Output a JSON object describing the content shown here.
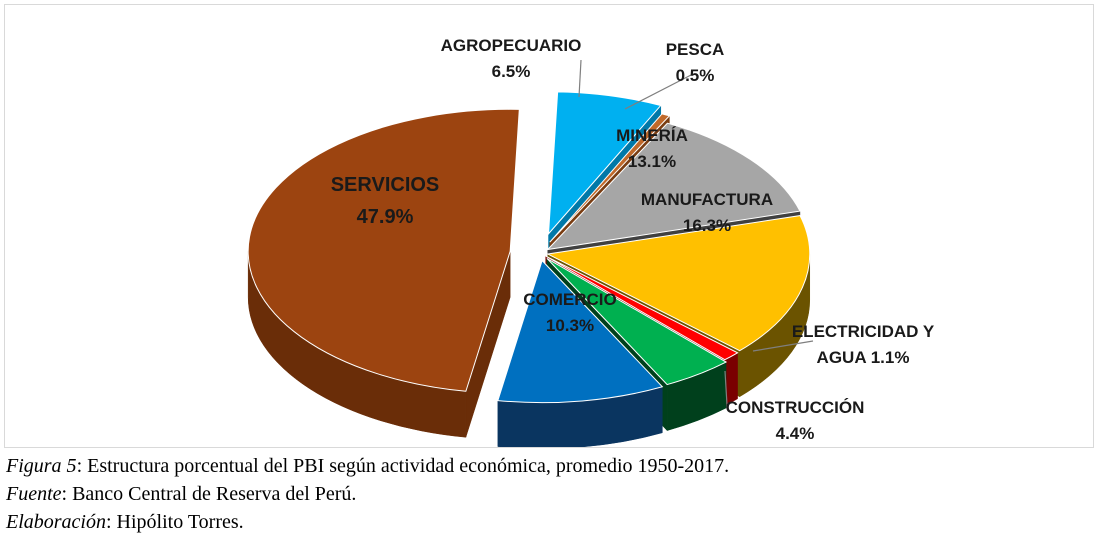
{
  "chart_data": {
    "type": "pie",
    "style": "3d-exploded",
    "unit": "%",
    "slices": [
      {
        "label": "AGROPECUARIO",
        "value": 6.5,
        "value_text": "6.5%",
        "color": "#00b0f0",
        "side_color": "#0078a8"
      },
      {
        "label": "PESCA",
        "value": 0.5,
        "value_text": "0.5%",
        "color": "#c0692a",
        "side_color": "#7a3d12"
      },
      {
        "label": "MINERÍA",
        "value": 13.1,
        "value_text": "13.1%",
        "color": "#a6a6a6",
        "side_color": "#404040"
      },
      {
        "label": "MANUFACTURA",
        "value": 16.3,
        "value_text": "16.3%",
        "color": "#ffc000",
        "side_color": "#6b5300"
      },
      {
        "label": "ELECTRICIDAD Y AGUA",
        "label_line1": "ELECTRICIDAD Y",
        "label_line2": "AGUA 1.1%",
        "value": 1.1,
        "value_text": "1.1%",
        "color": "#ff0000",
        "side_color": "#7a0000"
      },
      {
        "label": "CONSTRUCCIÓN",
        "value": 4.4,
        "value_text": "4.4%",
        "color": "#00b050",
        "side_color": "#00401c"
      },
      {
        "label": "COMERCIO",
        "value": 10.3,
        "value_text": "10.3%",
        "color": "#0070c0",
        "side_color": "#0a3560"
      },
      {
        "label": "SERVICIOS",
        "value": 47.9,
        "value_text": "47.9%",
        "color": "#9c4410",
        "side_color": "#6a2d08"
      }
    ]
  },
  "caption": {
    "figure_label": "Figura 5",
    "figure_text": ": Estructura porcentual del PBI según actividad económica, promedio 1950-2017.",
    "source_label": "Fuente",
    "source_text": ": Banco Central de Reserva del Perú.",
    "author_label": "Elaboración",
    "author_text": ": Hipólito Torres."
  }
}
